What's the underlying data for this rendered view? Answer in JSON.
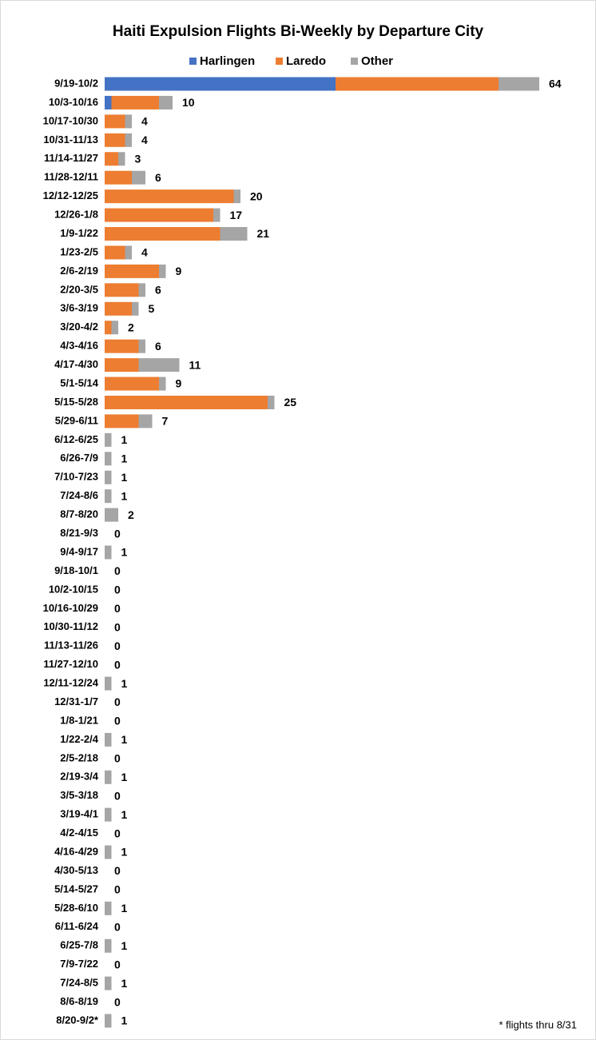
{
  "chart_data": {
    "type": "stacked-bar-horizontal",
    "title": "Haiti Expulsion Flights Bi-Weekly by Departure City",
    "footnote": "* flights thru 8/31",
    "categories": [
      "9/19-10/2",
      "10/3-10/16",
      "10/17-10/30",
      "10/31-11/13",
      "11/14-11/27",
      "11/28-12/11",
      "12/12-12/25",
      "12/26-1/8",
      "1/9-1/22",
      "1/23-2/5",
      "2/6-2/19",
      "2/20-3/5",
      "3/6-3/19",
      "3/20-4/2",
      "4/3-4/16",
      "4/17-4/30",
      "5/1-5/14",
      "5/15-5/28",
      "5/29-6/11",
      "6/12-6/25",
      "6/26-7/9",
      "7/10-7/23",
      "7/24-8/6",
      "8/7-8/20",
      "8/21-9/3",
      "9/4-9/17",
      "9/18-10/1",
      "10/2-10/15",
      "10/16-10/29",
      "10/30-11/12",
      "11/13-11/26",
      "11/27-12/10",
      "12/11-12/24",
      "12/31-1/7",
      "1/8-1/21",
      "1/22-2/4",
      "2/5-2/18",
      "2/19-3/4",
      "3/5-3/18",
      "3/19-4/1",
      "4/2-4/15",
      "4/16-4/29",
      "4/30-5/13",
      "5/14-5/27",
      "5/28-6/10",
      "6/11-6/24",
      "6/25-7/8",
      "7/9-7/22",
      "7/24-8/5",
      "8/6-8/19",
      "8/20-9/2*"
    ],
    "series": [
      {
        "name": "Harlingen",
        "color": "#4472c4",
        "values": [
          34,
          1,
          0,
          0,
          0,
          0,
          0,
          0,
          0,
          0,
          0,
          0,
          0,
          0,
          0,
          0,
          0,
          0,
          0,
          0,
          0,
          0,
          0,
          0,
          0,
          0,
          0,
          0,
          0,
          0,
          0,
          0,
          0,
          0,
          0,
          0,
          0,
          0,
          0,
          0,
          0,
          0,
          0,
          0,
          0,
          0,
          0,
          0,
          0,
          0,
          0
        ]
      },
      {
        "name": "Laredo",
        "color": "#ed7d31",
        "values": [
          24,
          7,
          3,
          3,
          2,
          4,
          19,
          16,
          17,
          3,
          8,
          5,
          4,
          1,
          5,
          5,
          8,
          24,
          5,
          0,
          0,
          0,
          0,
          0,
          0,
          0,
          0,
          0,
          0,
          0,
          0,
          0,
          0,
          0,
          0,
          0,
          0,
          0,
          0,
          0,
          0,
          0,
          0,
          0,
          0,
          0,
          0,
          0,
          0,
          0,
          0
        ]
      },
      {
        "name": "Other",
        "color": "#a5a5a5",
        "values": [
          6,
          2,
          1,
          1,
          1,
          2,
          1,
          1,
          4,
          1,
          1,
          1,
          1,
          1,
          1,
          6,
          1,
          1,
          2,
          1,
          1,
          1,
          1,
          2,
          0,
          1,
          0,
          0,
          0,
          0,
          0,
          0,
          1,
          0,
          0,
          1,
          0,
          1,
          0,
          1,
          0,
          1,
          0,
          0,
          1,
          0,
          1,
          0,
          1,
          0,
          1
        ]
      }
    ],
    "totals": [
      64,
      10,
      4,
      4,
      3,
      6,
      20,
      17,
      21,
      4,
      9,
      6,
      5,
      2,
      6,
      11,
      9,
      25,
      7,
      1,
      1,
      1,
      1,
      2,
      0,
      1,
      0,
      0,
      0,
      0,
      0,
      0,
      1,
      0,
      0,
      1,
      0,
      1,
      0,
      1,
      0,
      1,
      0,
      0,
      1,
      0,
      1,
      0,
      1,
      0,
      1
    ],
    "legend": "top"
  }
}
